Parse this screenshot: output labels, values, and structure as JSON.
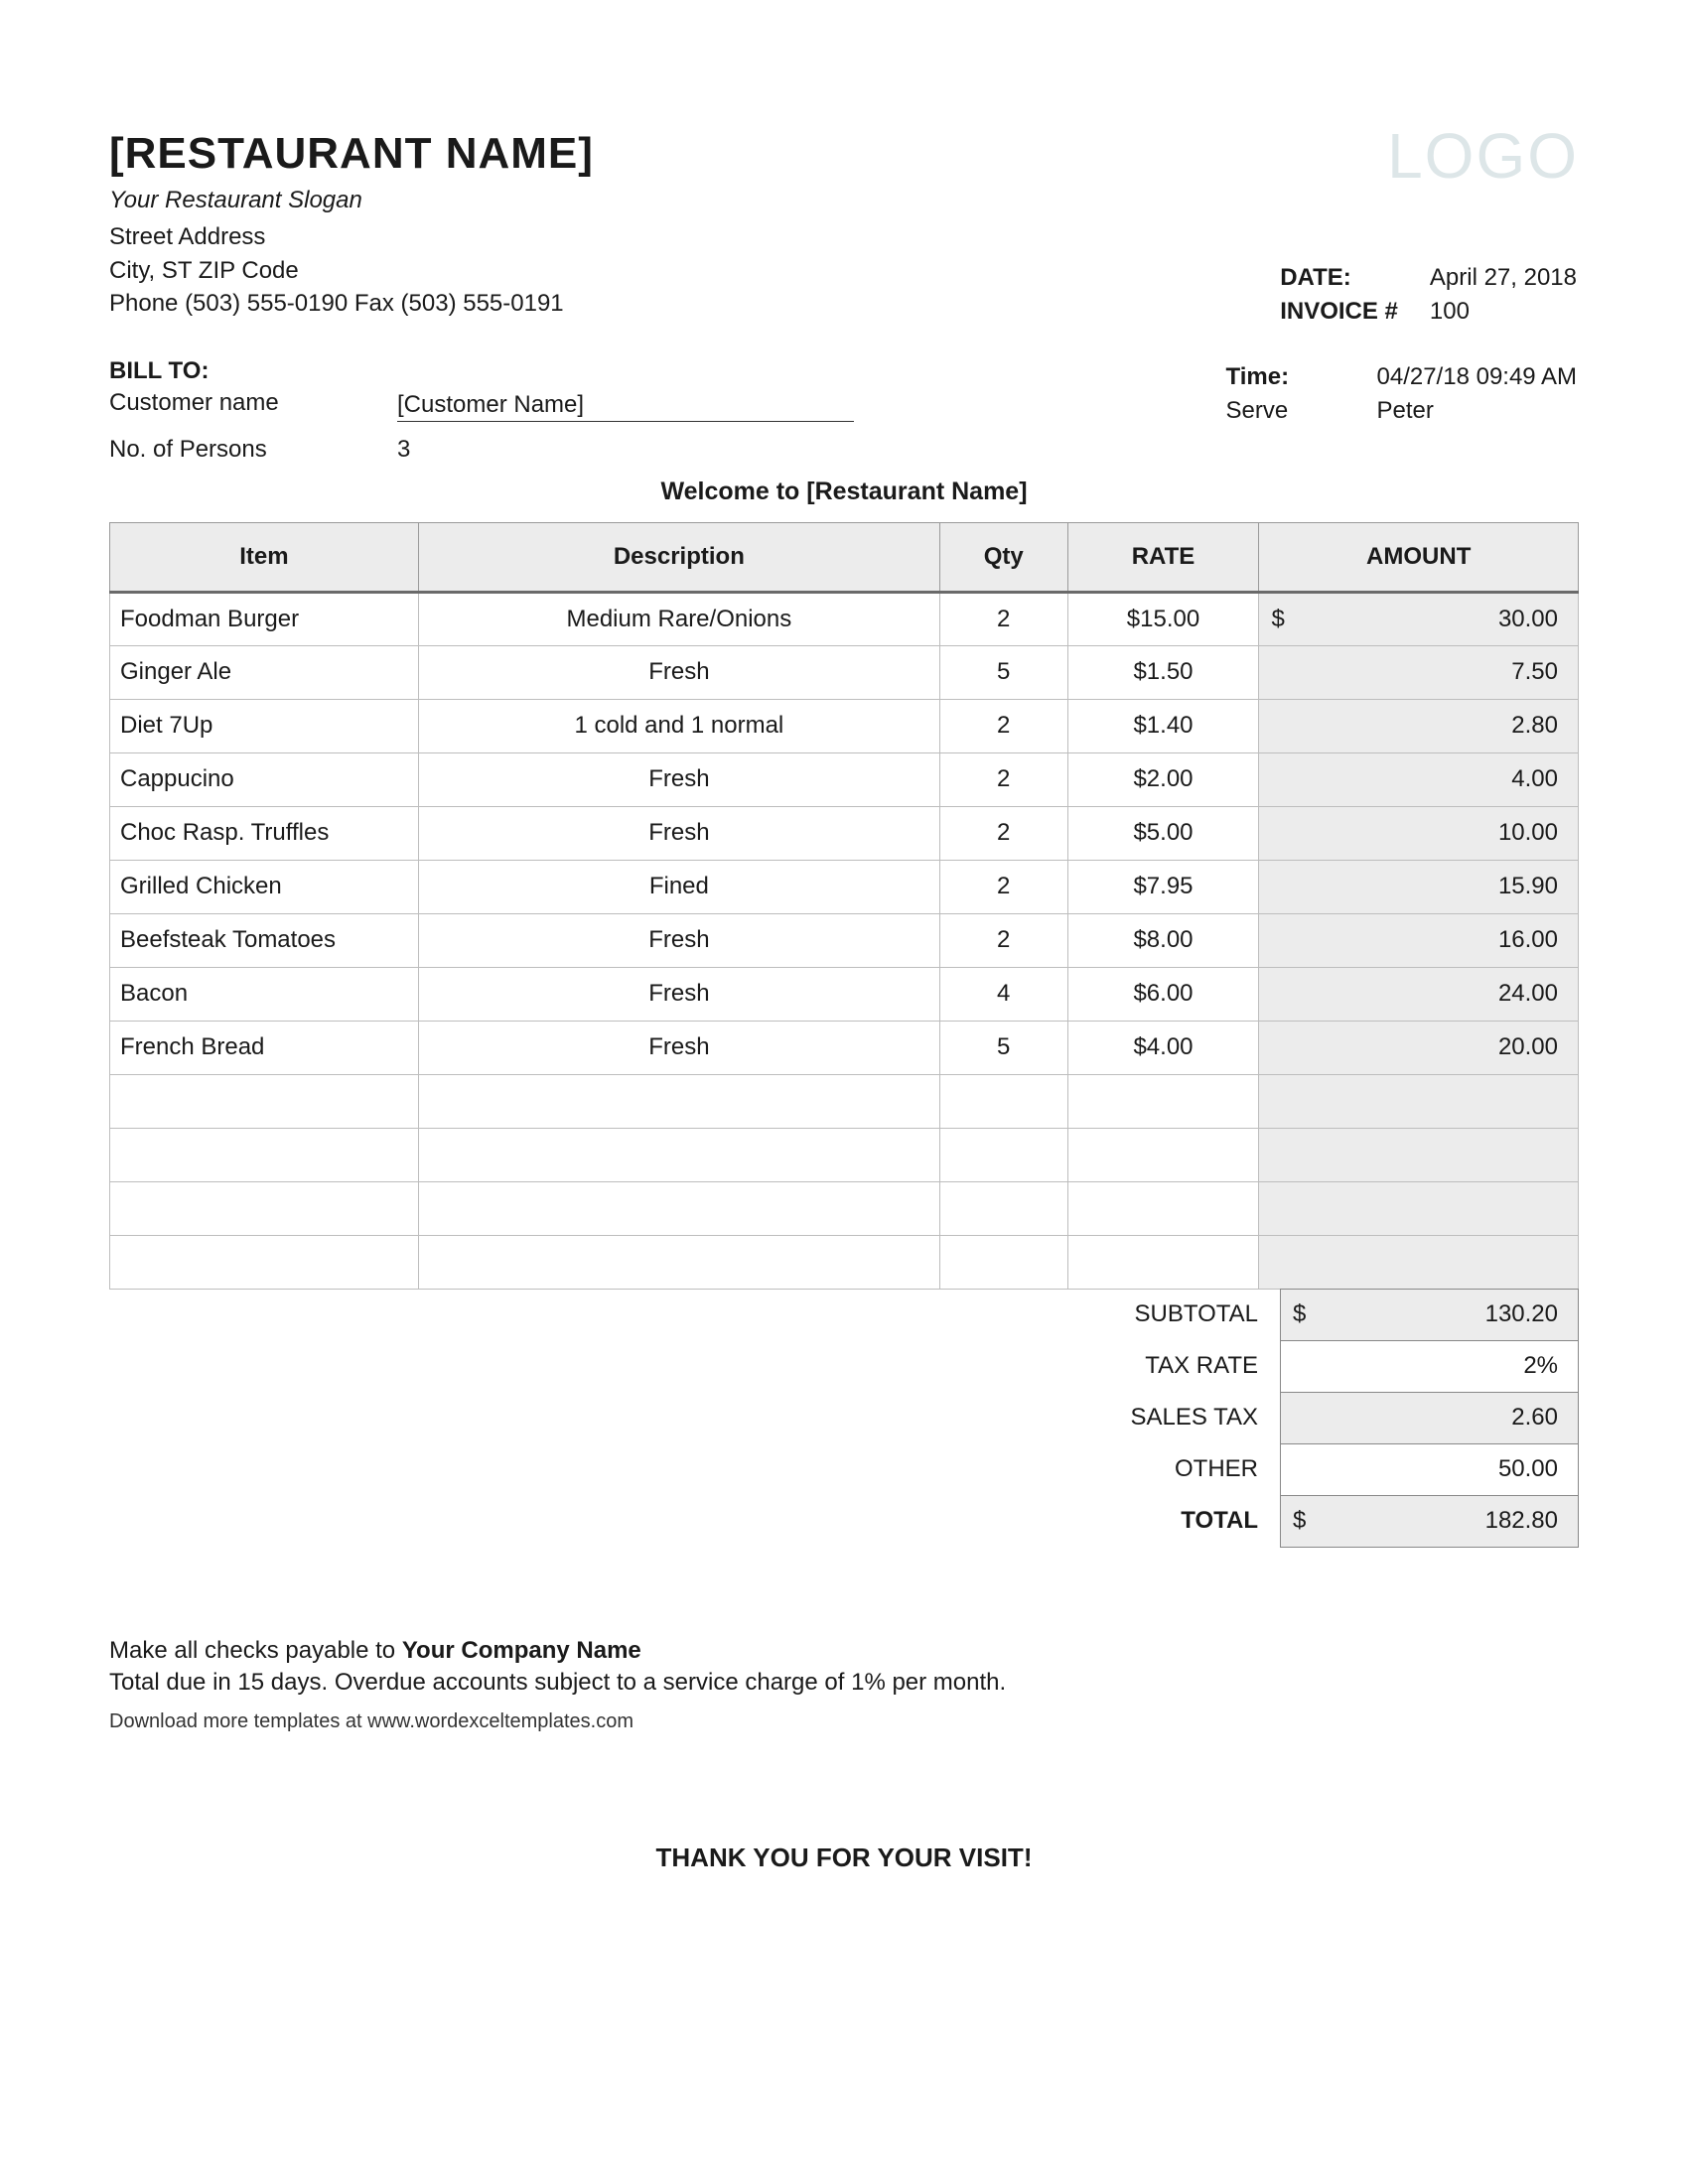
{
  "header": {
    "restaurant_name": "[RESTAURANT NAME]",
    "logo_text": "LOGO",
    "slogan": "Your Restaurant Slogan",
    "street": "Street Address",
    "city_line": "City, ST  ZIP Code",
    "phone_line": "Phone (503) 555-0190   Fax (503) 555-0191"
  },
  "meta": {
    "date_label": "DATE:",
    "date_value": "April 27, 2018",
    "invoice_label": "INVOICE #",
    "invoice_value": "100"
  },
  "bill": {
    "bill_to_label": "BILL TO:",
    "customer_label": "Customer name",
    "customer_value": "[Customer Name]",
    "persons_label": "No. of Persons",
    "persons_value": "3"
  },
  "serve": {
    "time_label": "Time:",
    "time_value": "04/27/18 09:49 AM",
    "serve_label": "Serve",
    "serve_value": "Peter"
  },
  "welcome": "Welcome to [Restaurant Name]",
  "columns": {
    "item": "Item",
    "desc": "Description",
    "qty": "Qty",
    "rate": "RATE",
    "amount": "AMOUNT"
  },
  "rows": [
    {
      "item": "Foodman Burger",
      "desc": "Medium Rare/Onions",
      "qty": "2",
      "rate": "$15.00",
      "cur": "$",
      "amt": "30.00"
    },
    {
      "item": "Ginger Ale",
      "desc": "Fresh",
      "qty": "5",
      "rate": "$1.50",
      "cur": "",
      "amt": "7.50"
    },
    {
      "item": "Diet 7Up",
      "desc": "1 cold and 1 normal",
      "qty": "2",
      "rate": "$1.40",
      "cur": "",
      "amt": "2.80"
    },
    {
      "item": "Cappucino",
      "desc": "Fresh",
      "qty": "2",
      "rate": "$2.00",
      "cur": "",
      "amt": "4.00"
    },
    {
      "item": "Choc Rasp. Truffles",
      "desc": "Fresh",
      "qty": "2",
      "rate": "$5.00",
      "cur": "",
      "amt": "10.00"
    },
    {
      "item": "Grilled Chicken",
      "desc": "Fined",
      "qty": "2",
      "rate": "$7.95",
      "cur": "",
      "amt": "15.90"
    },
    {
      "item": "Beefsteak Tomatoes",
      "desc": "Fresh",
      "qty": "2",
      "rate": "$8.00",
      "cur": "",
      "amt": "16.00"
    },
    {
      "item": "Bacon",
      "desc": "Fresh",
      "qty": "4",
      "rate": "$6.00",
      "cur": "",
      "amt": "24.00"
    },
    {
      "item": "French Bread",
      "desc": "Fresh",
      "qty": "5",
      "rate": "$4.00",
      "cur": "",
      "amt": "20.00"
    }
  ],
  "empty_rows": 4,
  "totals": [
    {
      "label": "SUBTOTAL",
      "cur": "$",
      "val": "130.20",
      "shade": true,
      "bold": false
    },
    {
      "label": "TAX RATE",
      "cur": "",
      "val": "2%",
      "shade": false,
      "bold": false
    },
    {
      "label": "SALES TAX",
      "cur": "",
      "val": "2.60",
      "shade": true,
      "bold": false
    },
    {
      "label": "OTHER",
      "cur": "",
      "val": "50.00",
      "shade": false,
      "bold": false
    },
    {
      "label": "TOTAL",
      "cur": "$",
      "val": "182.80",
      "shade": true,
      "bold": true
    }
  ],
  "footer": {
    "pay_prefix": "Make all checks payable to ",
    "pay_company": "Your Company Name",
    "due_line": "Total due in 15 days. Overdue accounts subject to a service charge of 1% per month.",
    "download_line": "Download more templates at www.wordexceltemplates.com"
  },
  "thank_you": "THANK YOU FOR YOUR VISIT!"
}
